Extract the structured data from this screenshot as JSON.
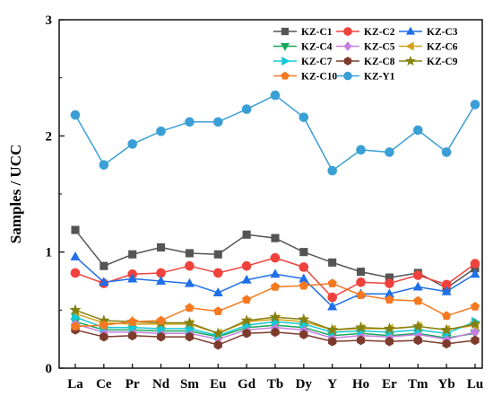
{
  "chart_data": {
    "type": "line",
    "title": "",
    "xlabel": "",
    "ylabel": "Samples / UCC",
    "categories": [
      "La",
      "Ce",
      "Pr",
      "Nd",
      "Sm",
      "Eu",
      "Gd",
      "Tb",
      "Dy",
      "Y",
      "Ho",
      "Er",
      "Tm",
      "Yb",
      "Lu"
    ],
    "ylim": [
      0,
      3
    ],
    "yticks": [
      0,
      1,
      2,
      3
    ],
    "grid": false,
    "legend_position": "top-right",
    "series": [
      {
        "name": "KZ-C1",
        "color": "#555555",
        "marker": "square",
        "values": [
          1.19,
          0.88,
          0.98,
          1.04,
          0.99,
          0.98,
          1.15,
          1.12,
          1.0,
          0.91,
          0.83,
          0.78,
          0.82,
          0.69,
          0.86
        ]
      },
      {
        "name": "KZ-C2",
        "color": "#f0413c",
        "marker": "circle",
        "values": [
          0.82,
          0.73,
          0.81,
          0.82,
          0.88,
          0.82,
          0.88,
          0.95,
          0.87,
          0.61,
          0.74,
          0.73,
          0.8,
          0.72,
          0.9
        ]
      },
      {
        "name": "KZ-C3",
        "color": "#1f6fe8",
        "marker": "triangle-up",
        "values": [
          0.96,
          0.74,
          0.77,
          0.75,
          0.73,
          0.65,
          0.76,
          0.81,
          0.77,
          0.53,
          0.64,
          0.64,
          0.7,
          0.66,
          0.81
        ]
      },
      {
        "name": "KZ-C4",
        "color": "#16a85a",
        "marker": "triangle-down",
        "values": [
          0.4,
          0.33,
          0.33,
          0.32,
          0.32,
          0.27,
          0.35,
          0.37,
          0.35,
          0.28,
          0.3,
          0.28,
          0.3,
          0.26,
          0.3
        ]
      },
      {
        "name": "KZ-C5",
        "color": "#c77fe0",
        "marker": "diamond",
        "values": [
          0.38,
          0.31,
          0.31,
          0.3,
          0.3,
          0.25,
          0.33,
          0.35,
          0.33,
          0.26,
          0.28,
          0.27,
          0.29,
          0.25,
          0.31
        ]
      },
      {
        "name": "KZ-C6",
        "color": "#d4a017",
        "marker": "triangle-left",
        "values": [
          0.47,
          0.39,
          0.38,
          0.38,
          0.38,
          0.3,
          0.4,
          0.42,
          0.4,
          0.33,
          0.34,
          0.34,
          0.36,
          0.33,
          0.37
        ]
      },
      {
        "name": "KZ-C7",
        "color": "#15c8d6",
        "marker": "triangle-right",
        "values": [
          0.44,
          0.35,
          0.35,
          0.34,
          0.34,
          0.28,
          0.37,
          0.4,
          0.38,
          0.31,
          0.32,
          0.31,
          0.33,
          0.3,
          0.4
        ]
      },
      {
        "name": "KZ-C8",
        "color": "#7d3b2e",
        "marker": "hexagon",
        "values": [
          0.33,
          0.27,
          0.28,
          0.27,
          0.27,
          0.2,
          0.3,
          0.31,
          0.29,
          0.23,
          0.24,
          0.23,
          0.24,
          0.21,
          0.24
        ]
      },
      {
        "name": "KZ-C9",
        "color": "#858010",
        "marker": "star",
        "values": [
          0.5,
          0.41,
          0.4,
          0.39,
          0.39,
          0.3,
          0.41,
          0.44,
          0.42,
          0.33,
          0.35,
          0.34,
          0.36,
          0.33,
          0.38
        ]
      },
      {
        "name": "KZ-C10",
        "color": "#f47920",
        "marker": "pentagon",
        "values": [
          0.36,
          0.37,
          0.4,
          0.41,
          0.52,
          0.49,
          0.59,
          0.7,
          0.71,
          0.73,
          0.63,
          0.59,
          0.58,
          0.45,
          0.53
        ]
      },
      {
        "name": "KZ-Y1",
        "color": "#3a9fd6",
        "marker": "circle",
        "values": [
          2.18,
          1.75,
          1.93,
          2.04,
          2.12,
          2.12,
          2.23,
          2.35,
          2.16,
          1.7,
          1.88,
          1.86,
          2.05,
          1.86,
          2.27
        ]
      }
    ]
  }
}
